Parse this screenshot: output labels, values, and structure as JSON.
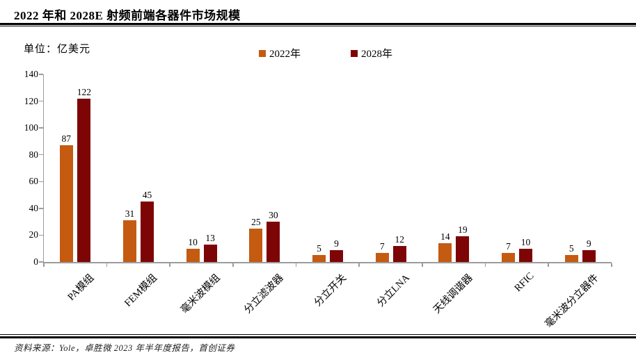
{
  "header": {
    "title": "2022 年和 2028E 射频前端各器件市场规模"
  },
  "unit_label": "单位：亿美元",
  "footer": {
    "source": "资料来源：Yole，卓胜微 2023 年半年度报告，首创证券"
  },
  "colors": {
    "bar_2022": "#C55A11",
    "bar_2028": "#7E0505",
    "axis": "#9b9b9b",
    "rule": "#000000"
  },
  "chart_data": {
    "type": "bar",
    "title": "2022 年和 2028E 射频前端各器件市场规模",
    "xlabel": "",
    "ylabel": "亿美元",
    "ylim": [
      0,
      140
    ],
    "yticks": [
      0,
      20,
      40,
      60,
      80,
      100,
      120,
      140
    ],
    "grid": false,
    "legend_position": "top",
    "categories": [
      "PA模组",
      "FEM模组",
      "毫米波模组",
      "分立滤波器",
      "分立开关",
      "分立LNA",
      "天线调谐器",
      "RFIC",
      "毫米波分立器件"
    ],
    "series": [
      {
        "name": "2022年",
        "color": "#C55A11",
        "values": [
          87,
          31,
          10,
          25,
          5,
          7,
          14,
          7,
          5
        ]
      },
      {
        "name": "2028年",
        "color": "#7E0505",
        "values": [
          122,
          45,
          13,
          30,
          9,
          12,
          19,
          10,
          9
        ]
      }
    ]
  }
}
